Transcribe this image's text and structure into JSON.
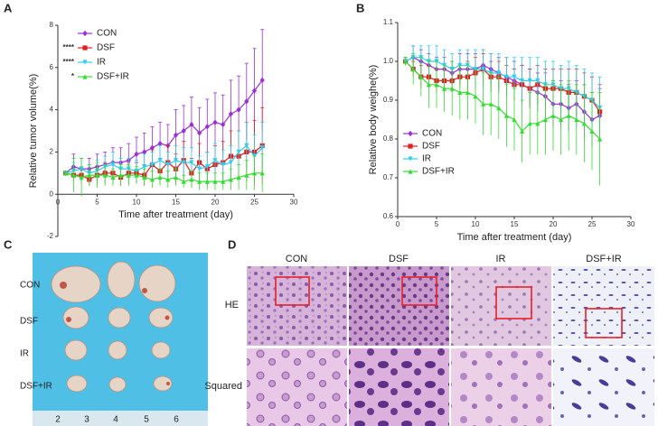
{
  "panel_labels": [
    "A",
    "B",
    "C",
    "D"
  ],
  "chart_data": [
    {
      "type": "line",
      "xlabel": "Time after treatment (day)",
      "ylabel": "Relative tumor volume(%)",
      "xlim": [
        0,
        30
      ],
      "xticks": [
        0,
        5,
        10,
        15,
        20,
        25,
        30
      ],
      "ylim": [
        -2,
        8
      ],
      "yticks": [
        -2,
        0,
        2,
        4,
        6,
        8
      ],
      "legend": "upper left",
      "x": [
        1,
        2,
        3,
        4,
        5,
        6,
        7,
        8,
        9,
        10,
        11,
        12,
        13,
        14,
        15,
        16,
        17,
        18,
        19,
        20,
        21,
        22,
        23,
        24,
        25,
        26
      ],
      "series": [
        {
          "name": "CON",
          "color": "#9b30d9",
          "values": [
            1,
            1.3,
            1.2,
            1.2,
            1.3,
            1.4,
            1.5,
            1.5,
            1.6,
            1.9,
            2.0,
            2.2,
            2.4,
            2.3,
            2.8,
            3.0,
            3.3,
            2.9,
            3.2,
            3.4,
            3.3,
            3.8,
            4.0,
            4.4,
            4.9,
            5.4
          ],
          "errors": [
            0.1,
            0.6,
            0.5,
            0.5,
            0.6,
            0.6,
            0.7,
            0.7,
            0.8,
            0.8,
            0.9,
            1.0,
            1.0,
            1.0,
            1.2,
            1.2,
            1.3,
            1.2,
            1.3,
            1.4,
            1.4,
            1.6,
            1.6,
            1.8,
            2.0,
            2.4
          ]
        },
        {
          "name": "DSF",
          "color": "#e02020",
          "significance": "****",
          "values": [
            1,
            0.9,
            0.9,
            0.7,
            0.9,
            1.0,
            1.0,
            0.8,
            1.0,
            1.0,
            0.9,
            1.4,
            1.1,
            1.5,
            1.2,
            1.6,
            1.0,
            1.5,
            1.2,
            1.4,
            1.5,
            1.8,
            1.8,
            2.0,
            2.0,
            2.3
          ],
          "errors": [
            0.1,
            0.3,
            0.4,
            0.3,
            0.4,
            0.5,
            0.5,
            0.4,
            0.5,
            0.5,
            0.5,
            0.7,
            0.6,
            0.8,
            0.7,
            0.9,
            0.7,
            0.9,
            0.8,
            0.9,
            1.0,
            1.2,
            1.2,
            1.4,
            1.5,
            1.8
          ]
        },
        {
          "name": "IR",
          "color": "#33ccee",
          "significance": "****",
          "values": [
            1,
            1.1,
            1.2,
            1.0,
            1.1,
            1.3,
            1.4,
            1.2,
            1.2,
            1.1,
            1.3,
            1.4,
            1.6,
            1.4,
            1.6,
            1.5,
            1.5,
            1.2,
            1.3,
            1.6,
            1.4,
            1.5,
            2.0,
            2.3,
            1.8,
            2.2
          ],
          "errors": [
            0.1,
            0.4,
            0.5,
            0.4,
            0.5,
            0.5,
            0.6,
            0.5,
            0.5,
            0.5,
            0.6,
            0.6,
            0.7,
            0.6,
            0.7,
            0.7,
            0.7,
            0.6,
            0.7,
            0.8,
            0.7,
            0.8,
            1.0,
            1.1,
            1.0,
            1.2
          ]
        },
        {
          "name": "DSF+IR",
          "color": "#33dd33",
          "significance": "*",
          "values": [
            1,
            0.9,
            0.8,
            0.9,
            0.9,
            0.9,
            0.8,
            0.9,
            0.9,
            0.9,
            0.8,
            0.7,
            0.8,
            0.7,
            0.8,
            0.6,
            0.7,
            0.6,
            0.6,
            0.6,
            0.6,
            0.7,
            0.8,
            0.9,
            1.0,
            1.0
          ],
          "errors": [
            0.1,
            0.8,
            0.9,
            0.5,
            0.6,
            0.5,
            0.4,
            0.5,
            0.5,
            0.4,
            0.4,
            0.4,
            0.4,
            0.4,
            0.4,
            0.3,
            0.4,
            0.4,
            0.4,
            0.4,
            0.4,
            0.5,
            0.6,
            0.7,
            0.8,
            0.9
          ]
        }
      ]
    },
    {
      "type": "line",
      "xlabel": "Time after treatment (day)",
      "ylabel": "Relative body weighe(%)",
      "xlim": [
        0,
        30
      ],
      "xticks": [
        0,
        5,
        10,
        15,
        20,
        25,
        30
      ],
      "ylim": [
        0.6,
        1.1
      ],
      "yticks": [
        0.6,
        0.7,
        0.8,
        0.9,
        {
          "value": 1,
          "label": "1.0"
        },
        1.1
      ],
      "legend": "lower left",
      "x": [
        1,
        2,
        3,
        4,
        5,
        6,
        7,
        8,
        9,
        10,
        11,
        12,
        13,
        14,
        15,
        16,
        17,
        18,
        19,
        20,
        21,
        22,
        23,
        24,
        25,
        26
      ],
      "series": [
        {
          "name": "CON",
          "color": "#9b30d9",
          "values": [
            1,
            1.01,
            1.0,
            0.99,
            0.98,
            0.98,
            0.97,
            0.98,
            0.98,
            0.98,
            0.99,
            0.98,
            0.97,
            0.96,
            0.95,
            0.94,
            0.93,
            0.92,
            0.91,
            0.89,
            0.89,
            0.88,
            0.89,
            0.87,
            0.85,
            0.86
          ],
          "errors": [
            0.01,
            0.03,
            0.03,
            0.03,
            0.03,
            0.03,
            0.03,
            0.04,
            0.04,
            0.04,
            0.04,
            0.04,
            0.04,
            0.05,
            0.05,
            0.05,
            0.05,
            0.05,
            0.06,
            0.06,
            0.06,
            0.06,
            0.06,
            0.07,
            0.07,
            0.07
          ]
        },
        {
          "name": "DSF",
          "color": "#e02020",
          "values": [
            1,
            0.98,
            0.96,
            0.96,
            0.95,
            0.95,
            0.95,
            0.96,
            0.96,
            0.97,
            0.98,
            0.96,
            0.96,
            0.95,
            0.94,
            0.94,
            0.93,
            0.94,
            0.93,
            0.93,
            0.93,
            0.92,
            0.92,
            0.91,
            0.9,
            0.87
          ],
          "errors": [
            0.01,
            0.02,
            0.03,
            0.03,
            0.03,
            0.03,
            0.03,
            0.03,
            0.04,
            0.04,
            0.04,
            0.04,
            0.04,
            0.04,
            0.04,
            0.05,
            0.05,
            0.05,
            0.05,
            0.05,
            0.05,
            0.06,
            0.06,
            0.06,
            0.06,
            0.07
          ]
        },
        {
          "name": "IR",
          "color": "#33ccee",
          "values": [
            1,
            1.01,
            1.01,
            1.0,
            1.0,
            0.99,
            0.98,
            0.99,
            0.99,
            0.98,
            0.98,
            0.97,
            0.97,
            0.96,
            0.96,
            0.95,
            0.95,
            0.95,
            0.94,
            0.94,
            0.93,
            0.93,
            0.92,
            0.91,
            0.9,
            0.88
          ],
          "errors": [
            0.01,
            0.03,
            0.03,
            0.04,
            0.04,
            0.04,
            0.04,
            0.04,
            0.04,
            0.05,
            0.05,
            0.05,
            0.05,
            0.05,
            0.05,
            0.06,
            0.06,
            0.06,
            0.06,
            0.06,
            0.06,
            0.07,
            0.07,
            0.07,
            0.07,
            0.08
          ]
        },
        {
          "name": "DSF+IR",
          "color": "#33dd33",
          "values": [
            1,
            0.98,
            0.96,
            0.94,
            0.94,
            0.93,
            0.93,
            0.92,
            0.92,
            0.91,
            0.89,
            0.89,
            0.88,
            0.86,
            0.85,
            0.82,
            0.84,
            0.84,
            0.85,
            0.86,
            0.85,
            0.86,
            0.85,
            0.84,
            0.82,
            0.8
          ],
          "errors": [
            0.01,
            0.04,
            0.05,
            0.06,
            0.06,
            0.06,
            0.07,
            0.07,
            0.07,
            0.07,
            0.08,
            0.08,
            0.08,
            0.08,
            0.08,
            0.08,
            0.08,
            0.08,
            0.09,
            0.09,
            0.09,
            0.09,
            0.09,
            0.1,
            0.1,
            0.12
          ]
        }
      ]
    }
  ],
  "photo": {
    "labels": [
      "CON",
      "DSF",
      "IR",
      "DSF+IR"
    ],
    "ruler": [
      "2",
      "3",
      "4",
      "5",
      "6"
    ]
  },
  "histology": {
    "columns": [
      "CON",
      "DSF",
      "IR",
      "DSF+IR"
    ],
    "rows": [
      "HE",
      "Squared"
    ]
  }
}
